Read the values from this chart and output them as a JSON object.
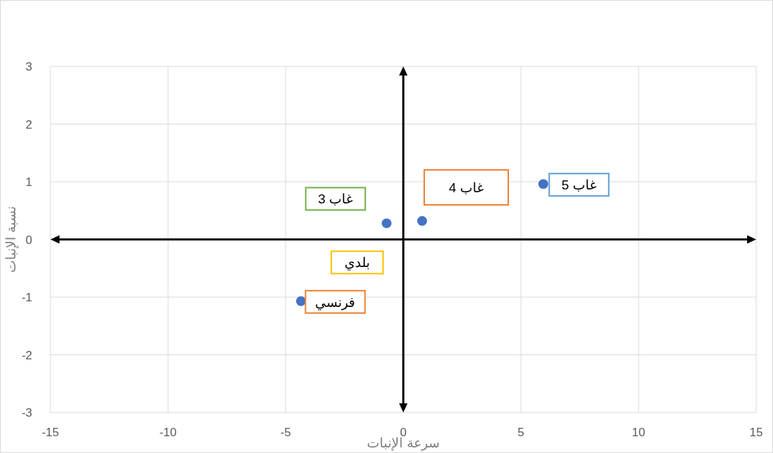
{
  "chart_data": {
    "type": "scatter",
    "xlabel": "سرعة الإنبات",
    "ylabel": "نسبة الإنبات",
    "x": [
      -4.35,
      -0.71,
      0.8,
      5.95
    ],
    "values": [
      -1.07,
      0.28,
      0.32,
      0.96
    ],
    "color": "#4472c4",
    "marker": "circle",
    "xlim": [
      -15,
      15
    ],
    "xticks": [
      -15,
      -10,
      -5,
      0,
      5,
      10,
      15
    ],
    "ylim": [
      -3,
      3
    ],
    "yticks": [
      -3,
      -2,
      -1,
      0,
      1,
      2,
      3
    ],
    "grid": true,
    "annotations": [
      {
        "text": "غاب 3",
        "x": -0.71,
        "y": 0.28
      },
      {
        "text": "غاب 4",
        "x": 0.8,
        "y": 0.32
      },
      {
        "text": "غاب 5",
        "x": 5.95,
        "y": 0.96
      },
      {
        "text": "بلدي",
        "x": -0.71,
        "y": 0.28
      },
      {
        "text": "فرنسي",
        "x": -4.35,
        "y": -1.07
      }
    ]
  }
}
